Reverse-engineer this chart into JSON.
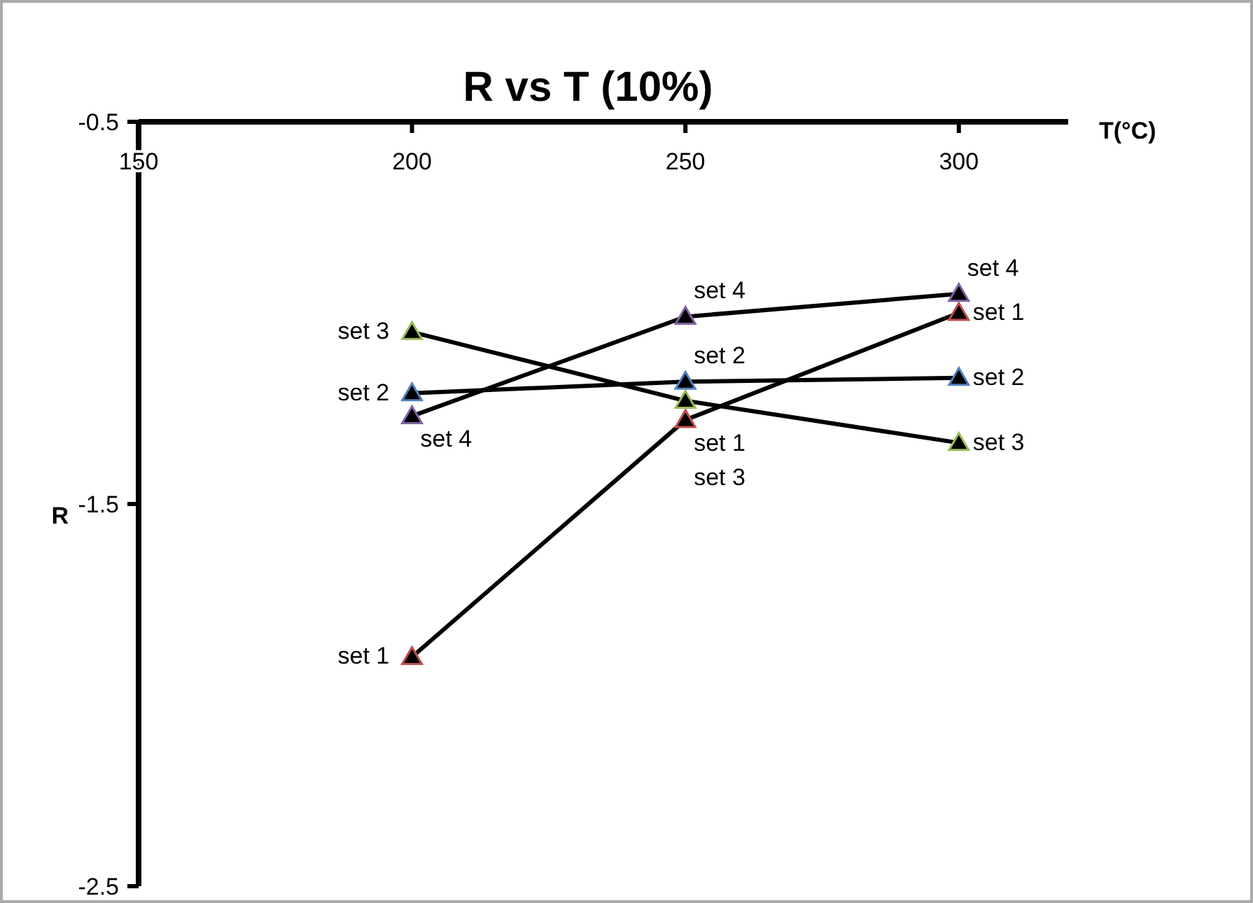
{
  "chart_data": {
    "type": "line",
    "title": "R vs T (10%)",
    "xlabel": "T(°C)",
    "ylabel": "R",
    "x": [
      200,
      250,
      300
    ],
    "xlim": [
      150,
      320
    ],
    "xticks": [
      150,
      200,
      250,
      300
    ],
    "ylim": [
      -2.5,
      -0.5
    ],
    "yticks": [
      -0.5,
      -1.5,
      -2.5
    ],
    "marker": "triangle",
    "line_style": "solid",
    "grid": false,
    "series": [
      {
        "name": "set 1",
        "color": "#c0504d",
        "values": [
          -1.9,
          -1.28,
          -1.0
        ]
      },
      {
        "name": "set 2",
        "color": "#4f81bd",
        "values": [
          -1.21,
          -1.18,
          -1.17
        ]
      },
      {
        "name": "set 3",
        "color": "#9bbb59",
        "values": [
          -1.05,
          -1.23,
          -1.34
        ]
      },
      {
        "name": "set 4",
        "color": "#8064a2",
        "values": [
          -1.27,
          -1.01,
          -0.95
        ]
      }
    ]
  }
}
